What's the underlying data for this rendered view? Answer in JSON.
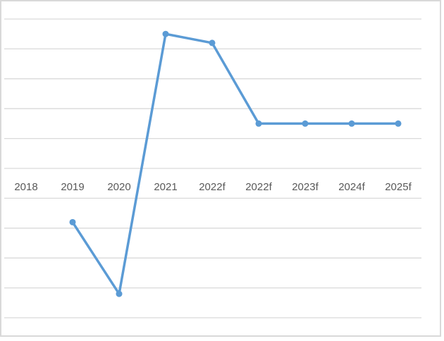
{
  "chart_data": {
    "type": "line",
    "title": "",
    "xlabel": "",
    "ylabel": "",
    "categories": [
      "2018",
      "2019",
      "2020",
      "2021",
      "2022f",
      "2022f",
      "2023f",
      "2024f",
      "2025f"
    ],
    "series": [
      {
        "values": [
          null,
          -1.8,
          -4.2,
          4.5,
          4.2,
          1.5,
          1.5,
          1.5,
          1.5
        ],
        "color": "#5b9bd5"
      }
    ],
    "ylim": [
      -5,
      5
    ],
    "y_tick_labels_shown": false,
    "grid": true,
    "gridline_color": "#d9d9d9",
    "legend": "none",
    "markers": true
  }
}
